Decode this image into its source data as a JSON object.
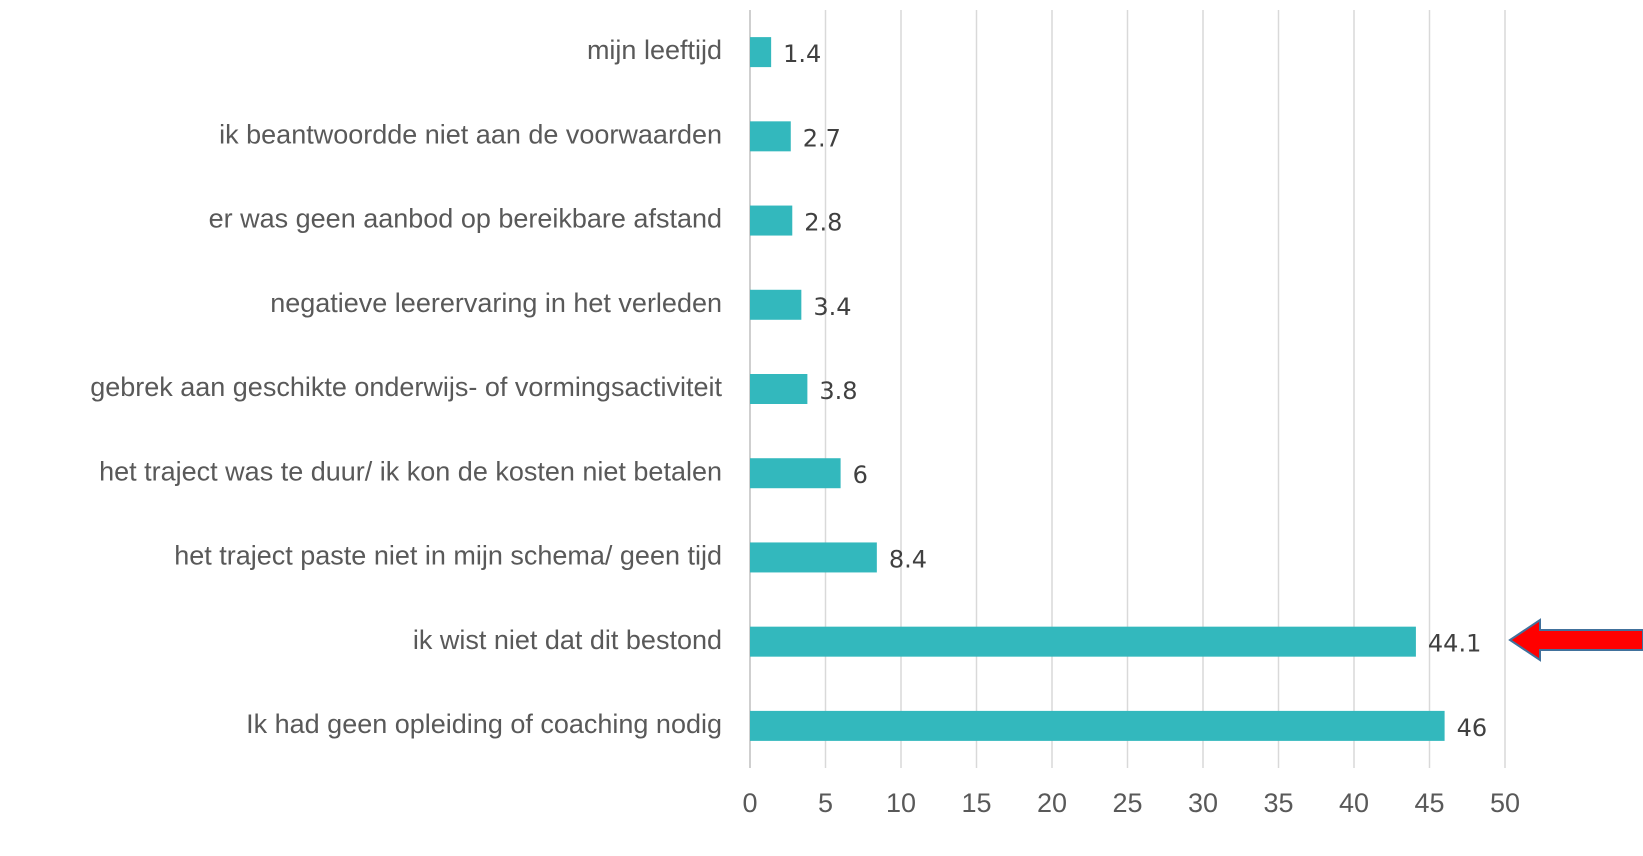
{
  "chart_data": {
    "type": "bar",
    "orientation": "horizontal",
    "categories": [
      "mijn leeftijd",
      "ik beantwoordde niet aan de voorwaarden",
      "er was geen aanbod op bereikbare afstand",
      "negatieve leerervaring in het verleden",
      "gebrek aan geschikte onderwijs- of vormingsactiviteit",
      "het traject was te duur/ ik kon de kosten niet betalen",
      "het traject paste niet in mijn schema/ geen tijd",
      "ik wist niet dat dit bestond",
      "Ik had geen opleiding of coaching nodig"
    ],
    "values": [
      1.4,
      2.7,
      2.8,
      3.4,
      3.8,
      6,
      8.4,
      44.1,
      46
    ],
    "color": "#33b8bd",
    "xlim": [
      0,
      50
    ],
    "xticks": [
      0,
      5,
      10,
      15,
      20,
      25,
      30,
      35,
      40,
      45,
      50
    ],
    "grid": true
  }
}
